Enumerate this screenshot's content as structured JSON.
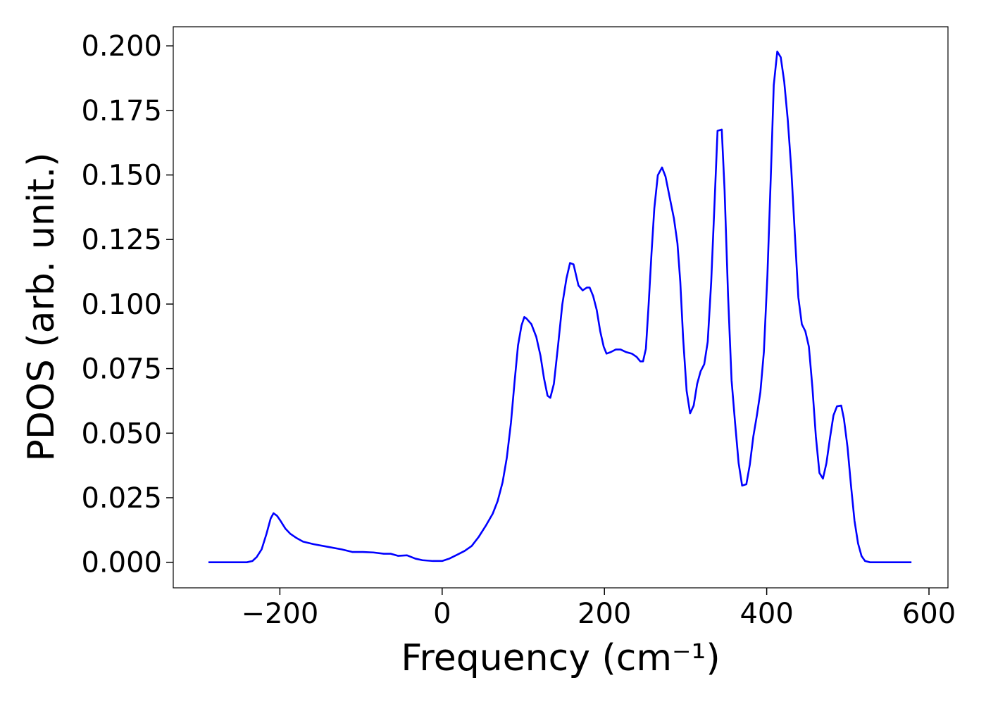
{
  "chart_data": {
    "type": "line",
    "xlabel": "Frequency (cm⁻¹)",
    "ylabel": "PDOS (arb. unit.)",
    "color": "#0000ff",
    "xlim": [
      -331.4,
      623.4
    ],
    "ylim": [
      -0.0099,
      0.2074
    ],
    "xticks": [
      {
        "value": -200,
        "label": "−200"
      },
      0,
      200,
      400,
      600
    ],
    "yticks": [
      {
        "value": 0,
        "label": "0.000"
      },
      {
        "value": 0.025,
        "label": "0.025"
      },
      {
        "value": 0.05,
        "label": "0.050"
      },
      {
        "value": 0.075,
        "label": "0.075"
      },
      {
        "value": 0.1,
        "label": "0.100"
      },
      {
        "value": 0.125,
        "label": "0.125"
      },
      {
        "value": 0.15,
        "label": "0.150"
      },
      {
        "value": 0.175,
        "label": "0.175"
      },
      {
        "value": 0.2,
        "label": "0.200"
      }
    ],
    "x": [
      -288,
      -240.7,
      -233.8,
      -228.6,
      -222.5,
      -216.5,
      -211.3,
      -207.8,
      -203.5,
      -199.1,
      -193.1,
      -187,
      -180,
      -171.4,
      -158.4,
      -141.1,
      -123.8,
      -110.8,
      -97.8,
      -84.8,
      -71.9,
      -63.2,
      -54.5,
      -43.3,
      -32.9,
      -24.2,
      -11.3,
      0,
      8.7,
      19,
      27.7,
      36.4,
      45,
      53.7,
      62.3,
      68.4,
      74.5,
      79.7,
      84.8,
      89.2,
      93.5,
      97.8,
      101.3,
      103.9,
      110,
      116,
      121.2,
      125.5,
      129.9,
      133.3,
      137.7,
      142.9,
      148.1,
      153.2,
      157.6,
      161.9,
      168,
      173.2,
      178.4,
      181.8,
      186.1,
      190.5,
      194.8,
      199.1,
      202.6,
      207.8,
      213.9,
      219.9,
      226.8,
      233.8,
      239.8,
      244.2,
      247.6,
      251.1,
      254.5,
      258,
      261.5,
      265.8,
      271,
      275.3,
      280.5,
      285.7,
      290,
      293.5,
      297,
      301.3,
      305.6,
      310,
      314.3,
      318.6,
      323,
      327.3,
      331.6,
      336,
      339.4,
      344.6,
      348.1,
      352.4,
      356.7,
      361,
      365.4,
      369.7,
      374.9,
      379.2,
      383.5,
      387.9,
      392.2,
      396.5,
      400.9,
      405.2,
      408.7,
      413,
      417.3,
      421.6,
      426,
      430.3,
      434.6,
      439,
      443.3,
      447.6,
      452,
      456.3,
      460.6,
      465,
      469.3,
      473.6,
      478,
      482.3,
      486.6,
      491.8,
      495.2,
      499.6,
      503.9,
      508.2,
      512.6,
      516.9,
      521.2,
      527.3,
      578.4
    ],
    "values": [
      0,
      0,
      0.0005,
      0.002,
      0.005,
      0.011,
      0.017,
      0.019,
      0.018,
      0.016,
      0.013,
      0.011,
      0.0095,
      0.008,
      0.007,
      0.006,
      0.005,
      0.004,
      0.004,
      0.0038,
      0.0033,
      0.0033,
      0.0025,
      0.0027,
      0.0014,
      0.0008,
      0.0005,
      0.0005,
      0.0014,
      0.003,
      0.0044,
      0.0063,
      0.0098,
      0.0141,
      0.0188,
      0.0237,
      0.031,
      0.0405,
      0.054,
      0.0697,
      0.084,
      0.0917,
      0.095,
      0.0944,
      0.0922,
      0.0873,
      0.08,
      0.0713,
      0.0645,
      0.0637,
      0.0691,
      0.0841,
      0.0999,
      0.1099,
      0.1159,
      0.1154,
      0.1072,
      0.1053,
      0.1064,
      0.1064,
      0.1031,
      0.0977,
      0.0895,
      0.0835,
      0.0808,
      0.0814,
      0.0824,
      0.0824,
      0.0814,
      0.0808,
      0.0795,
      0.0778,
      0.0778,
      0.0827,
      0.0999,
      0.1195,
      0.1371,
      0.1499,
      0.1529,
      0.1494,
      0.1412,
      0.1331,
      0.1235,
      0.1086,
      0.0868,
      0.0664,
      0.0577,
      0.0607,
      0.0691,
      0.074,
      0.0767,
      0.0854,
      0.1086,
      0.1412,
      0.1671,
      0.1676,
      0.144,
      0.1031,
      0.0705,
      0.0541,
      0.0384,
      0.0297,
      0.0302,
      0.0378,
      0.0487,
      0.0569,
      0.0659,
      0.0814,
      0.1113,
      0.1507,
      0.1848,
      0.1978,
      0.1956,
      0.1861,
      0.1712,
      0.1522,
      0.1276,
      0.1026,
      0.0922,
      0.0895,
      0.0835,
      0.0678,
      0.0487,
      0.0346,
      0.0324,
      0.0384,
      0.0482,
      0.0569,
      0.0604,
      0.0607,
      0.0555,
      0.0446,
      0.0297,
      0.0161,
      0.0073,
      0.0024,
      0.0005,
      0,
      0
    ]
  }
}
